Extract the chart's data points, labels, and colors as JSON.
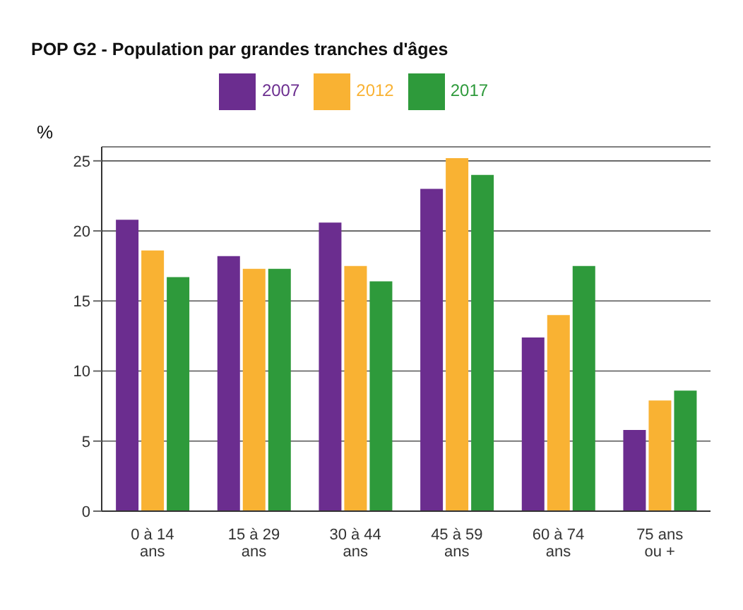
{
  "chart_data": {
    "type": "bar",
    "title": "POP G2 - Population par grandes tranches d'âges",
    "ylabel": "%",
    "categories": [
      "0 à 14\nans",
      "15 à 29\nans",
      "30 à 44\nans",
      "45 à 59\nans",
      "60 à 74\nans",
      "75 ans\nou +"
    ],
    "series": [
      {
        "name": "2007",
        "color": "#6b2d8f",
        "values": [
          20.8,
          18.2,
          20.6,
          23.0,
          12.4,
          5.8
        ]
      },
      {
        "name": "2012",
        "color": "#f9b233",
        "values": [
          18.6,
          17.3,
          17.5,
          25.2,
          14.0,
          7.9
        ]
      },
      {
        "name": "2017",
        "color": "#2e9a3b",
        "values": [
          16.7,
          17.3,
          16.4,
          24.0,
          17.5,
          8.6
        ]
      }
    ],
    "ylim": [
      0,
      26
    ],
    "yticks": [
      0,
      5,
      10,
      15,
      20,
      25
    ],
    "grid": "y",
    "legend": "top"
  }
}
